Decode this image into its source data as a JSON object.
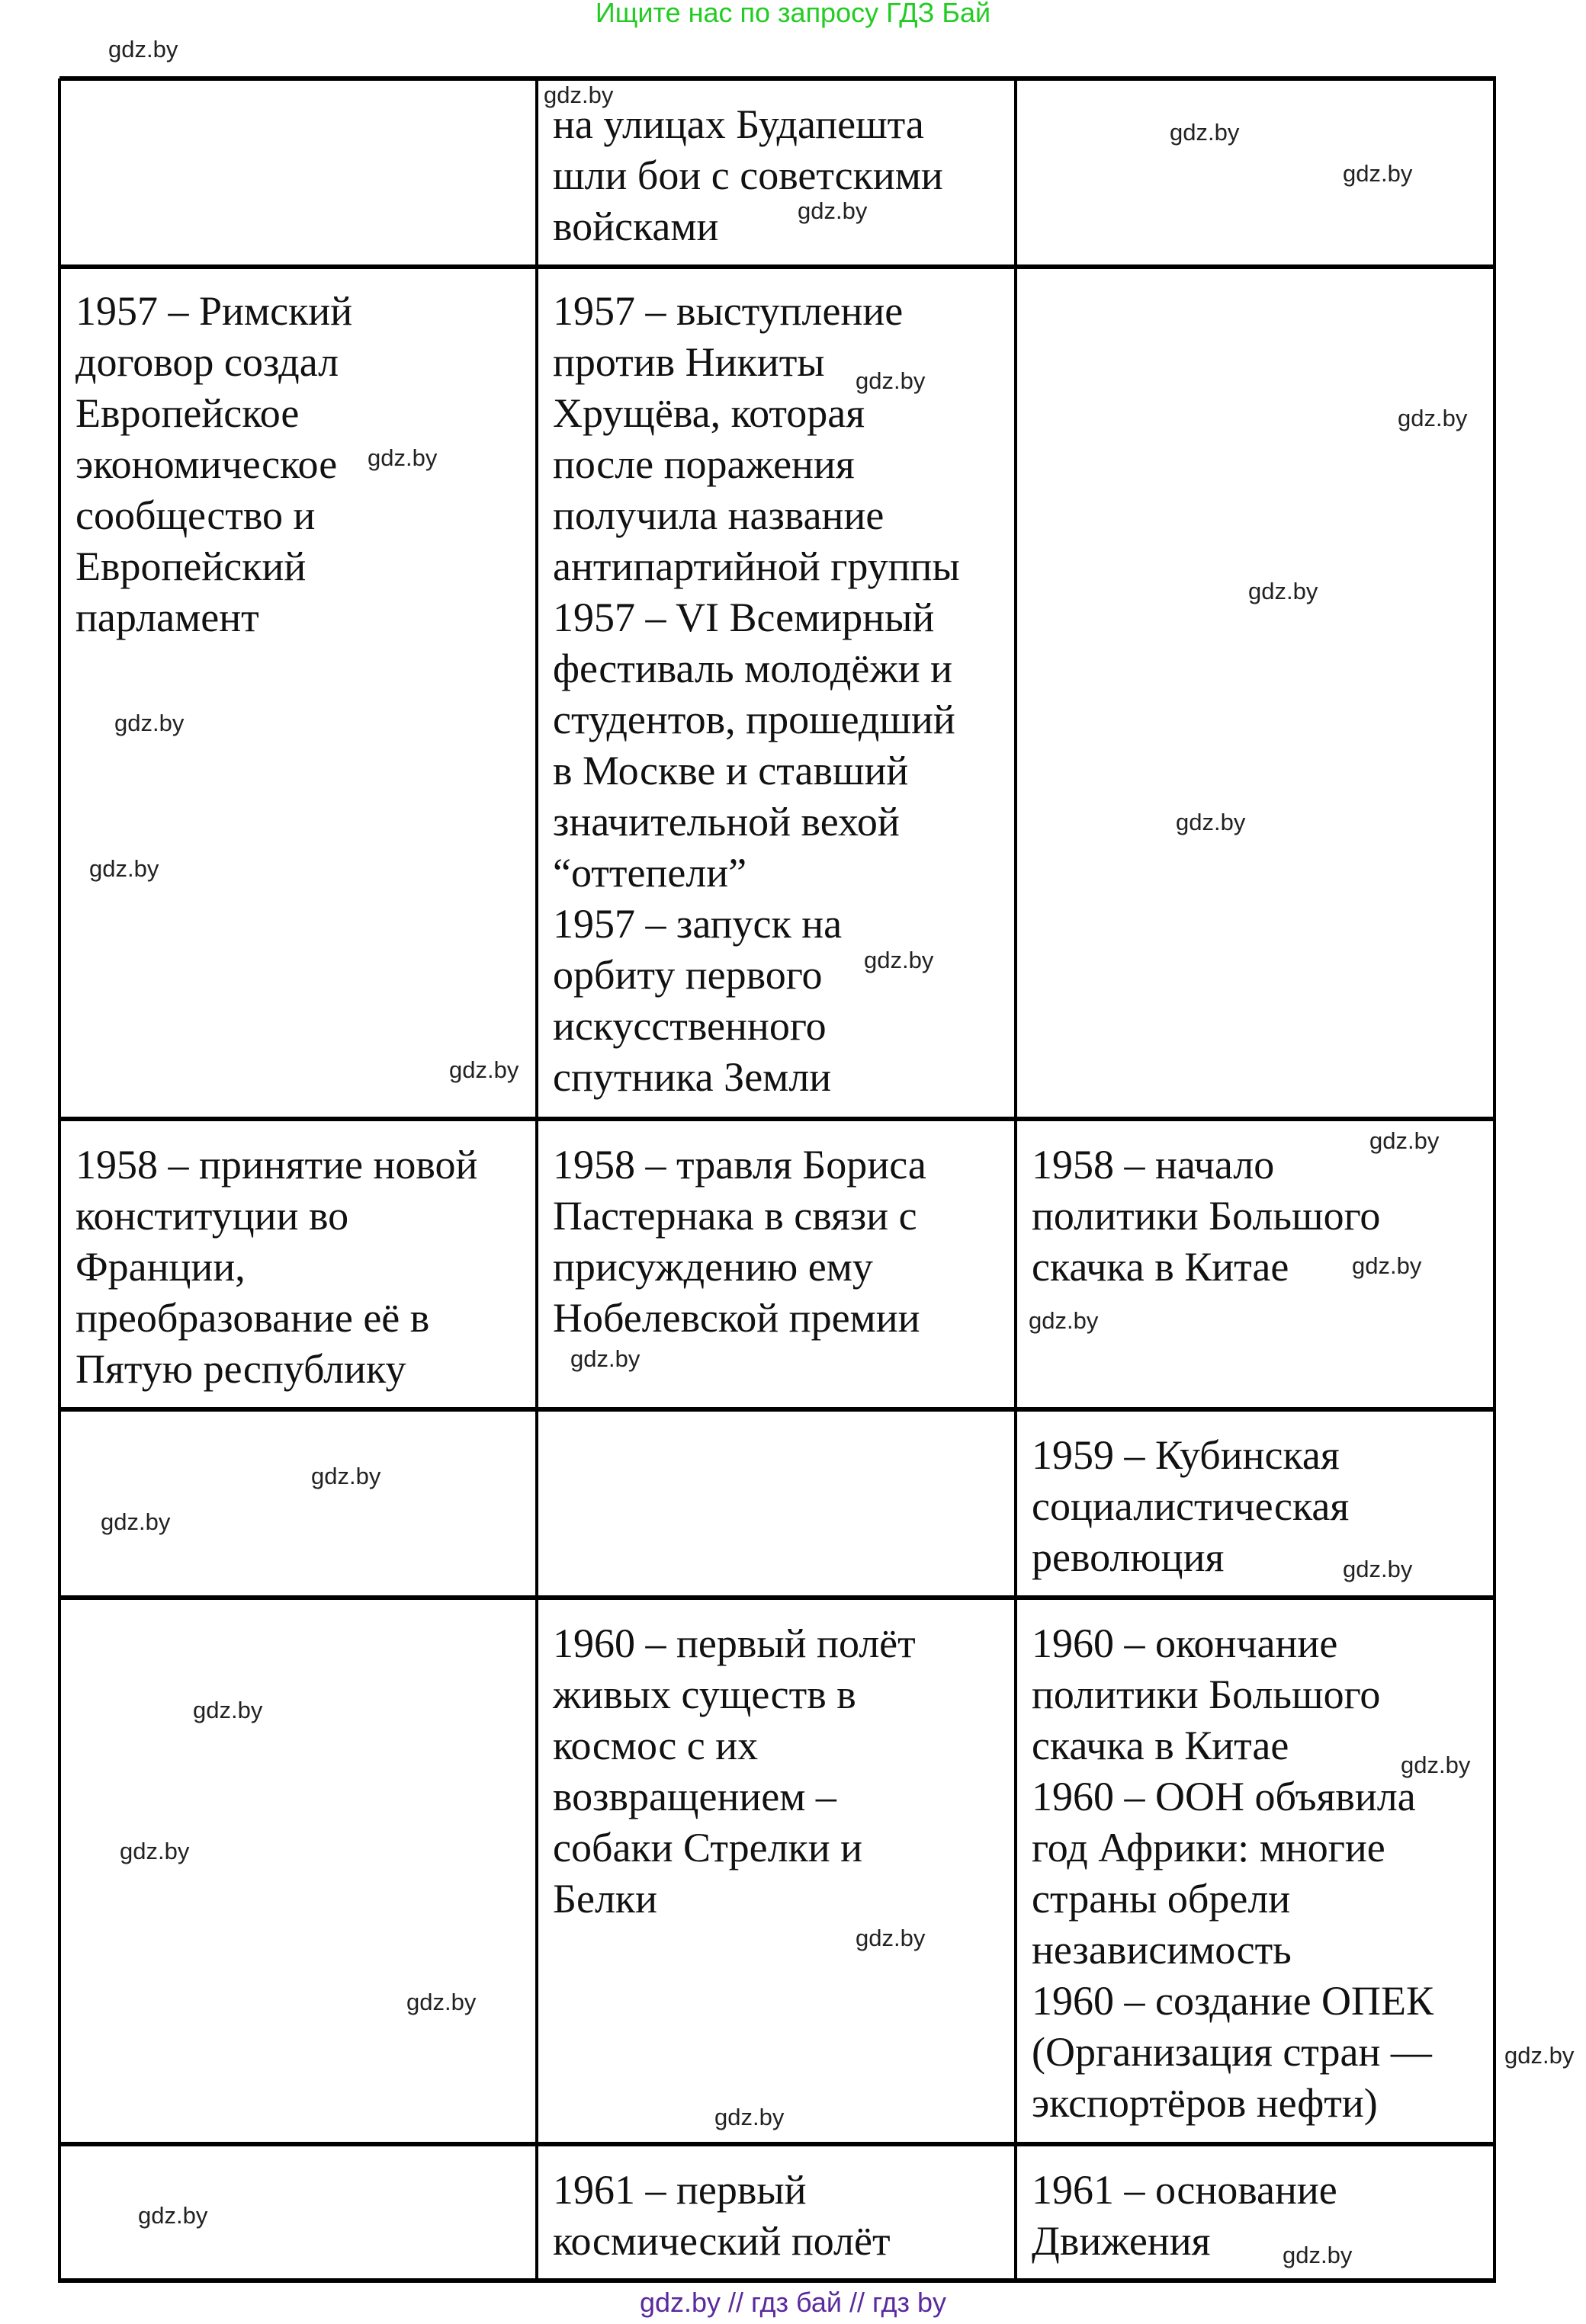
{
  "header_banner": "Ищите нас по запросу ГДЗ Бай",
  "footer_banner": "gdz.by  //  гдз бай  //  гдз by",
  "watermark": "gdz.by",
  "table": {
    "rows": [
      {
        "cells": [
          [],
          [
            "на улицах Будапешта",
            "шли бои с советскими",
            "войсками"
          ],
          []
        ]
      },
      {
        "cells": [
          [
            "1957 – Римский",
            "договор создал",
            "Европейское",
            "экономическое",
            "сообщество и",
            "Европейский",
            "парламент"
          ],
          [
            "1957 – выступление",
            "против Никиты",
            "Хрущёва, которая",
            "после поражения",
            "получила название",
            "антипартийной группы",
            "1957 – VI Всемирный",
            "фестиваль молодёжи и",
            "студентов, прошедший",
            "в Москве и ставший",
            "значительной вехой",
            "“оттепели”",
            "1957 – запуск на",
            "орбиту первого",
            "искусственного",
            "спутника Земли"
          ],
          []
        ]
      },
      {
        "cells": [
          [
            "1958 – принятие новой",
            "конституции во",
            "Франции,",
            "преобразование её в",
            "Пятую республику"
          ],
          [
            "1958 –  травля Бориса",
            "Пастернака в связи с",
            "присуждению ему",
            "Нобелевской премии"
          ],
          [
            "1958 – начало",
            "политики Большого",
            "скачка в Китае"
          ]
        ]
      },
      {
        "cells": [
          [],
          [],
          [
            "1959 – Кубинская",
            "социалистическая",
            "революция"
          ]
        ]
      },
      {
        "cells": [
          [],
          [
            "1960 – первый полёт",
            "живых существ в",
            "космос с их",
            "возвращением –",
            "собаки Стрелки и",
            "Белки"
          ],
          [
            "1960 – окончание",
            "политики Большого",
            "скачка в Китае",
            "1960 – ООН объявила",
            "год Африки: многие",
            "страны обрели",
            "независимость",
            "1960 – создание ОПЕК",
            "(Организация стран —",
            "экспортёров нефти)"
          ]
        ]
      },
      {
        "cells": [
          [],
          [
            "1961 – первый",
            "космический полёт"
          ],
          [
            "1961 – основание",
            "Движения"
          ]
        ]
      }
    ]
  }
}
